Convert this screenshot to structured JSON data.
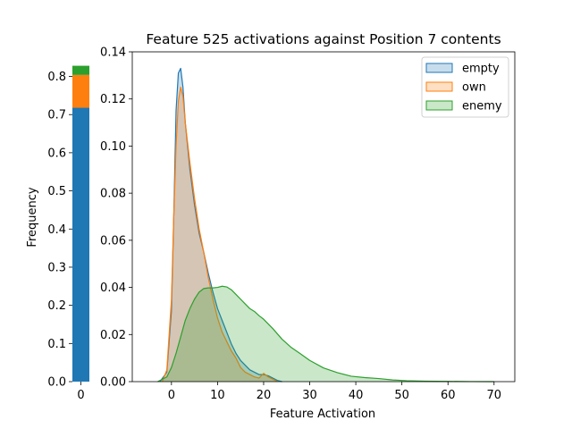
{
  "chart_data": [
    {
      "type": "bar",
      "stacked": true,
      "categories": [
        "0"
      ],
      "series": [
        {
          "name": "empty",
          "color": "#1f77b4",
          "values": [
            0.718
          ]
        },
        {
          "name": "own",
          "color": "#ff7f0e",
          "values": [
            0.086
          ]
        },
        {
          "name": "enemy",
          "color": "#2ca02c",
          "values": [
            0.024
          ]
        }
      ],
      "xlabel": "",
      "ylabel": "Frequency",
      "ylim": [
        0,
        0.8645
      ],
      "yticks": [
        "0.0",
        "0.1",
        "0.2",
        "0.3",
        "0.4",
        "0.5",
        "0.6",
        "0.7",
        "0.8"
      ],
      "xticks": [
        "0"
      ]
    },
    {
      "type": "area",
      "title": "Feature 525 activations against Position 7 contents",
      "xlabel": "Feature Activation",
      "ylabel": "",
      "xlim": [
        -8.5,
        74.5
      ],
      "ylim": [
        0,
        0.14
      ],
      "xticks": [
        "0",
        "10",
        "20",
        "30",
        "40",
        "50",
        "60",
        "70"
      ],
      "yticks": [
        "0.00",
        "0.02",
        "0.04",
        "0.06",
        "0.08",
        "0.10",
        "0.12",
        "0.14"
      ],
      "legend_position": "top-right",
      "grid": false,
      "series": [
        {
          "name": "empty",
          "color": "#1f77b4",
          "x": [
            -2.5,
            -1,
            0,
            0.5,
            1,
            1.5,
            2,
            2.5,
            3,
            4,
            5,
            6,
            7,
            8,
            9,
            10,
            11,
            12,
            13,
            14,
            15,
            16,
            17,
            18,
            19,
            20,
            21,
            22,
            23,
            24
          ],
          "y": [
            0,
            0.004,
            0.03,
            0.07,
            0.115,
            0.131,
            0.133,
            0.125,
            0.11,
            0.09,
            0.075,
            0.063,
            0.055,
            0.046,
            0.038,
            0.031,
            0.026,
            0.021,
            0.016,
            0.012,
            0.009,
            0.007,
            0.005,
            0.004,
            0.003,
            0.003,
            0.0025,
            0.0015,
            0.0005,
            0
          ]
        },
        {
          "name": "own",
          "color": "#ff7f0e",
          "x": [
            -2,
            -1,
            0,
            0.5,
            1,
            1.5,
            2,
            2.5,
            3,
            4,
            5,
            6,
            7,
            8,
            9,
            10,
            11,
            12,
            13,
            14,
            15,
            16,
            17,
            18,
            19,
            20,
            21,
            22,
            23
          ],
          "y": [
            0,
            0.005,
            0.035,
            0.07,
            0.1,
            0.119,
            0.125,
            0.121,
            0.11,
            0.093,
            0.078,
            0.065,
            0.055,
            0.044,
            0.035,
            0.027,
            0.021,
            0.017,
            0.013,
            0.01,
            0.006,
            0.004,
            0.003,
            0.002,
            0.0015,
            0.0035,
            0.002,
            0.001,
            0
          ]
        },
        {
          "name": "enemy",
          "color": "#2ca02c",
          "x": [
            -3,
            -1,
            0,
            1,
            2,
            3,
            4,
            5,
            6,
            7,
            8,
            9,
            10,
            11,
            12,
            13,
            14,
            15,
            16,
            17,
            18,
            19,
            20,
            22,
            24,
            26,
            28,
            30,
            33,
            36,
            39,
            42,
            45,
            48,
            51,
            55,
            60,
            65,
            70
          ],
          "y": [
            0,
            0.002,
            0.006,
            0.012,
            0.019,
            0.026,
            0.031,
            0.035,
            0.038,
            0.0395,
            0.0398,
            0.0398,
            0.04,
            0.0405,
            0.0402,
            0.039,
            0.037,
            0.035,
            0.033,
            0.031,
            0.0298,
            0.028,
            0.0265,
            0.0225,
            0.018,
            0.0145,
            0.0118,
            0.009,
            0.0058,
            0.0038,
            0.0023,
            0.0017,
            0.0013,
            0.0007,
            0.0004,
            0.0002,
            0.0001,
            3e-05,
            0
          ]
        }
      ]
    }
  ]
}
